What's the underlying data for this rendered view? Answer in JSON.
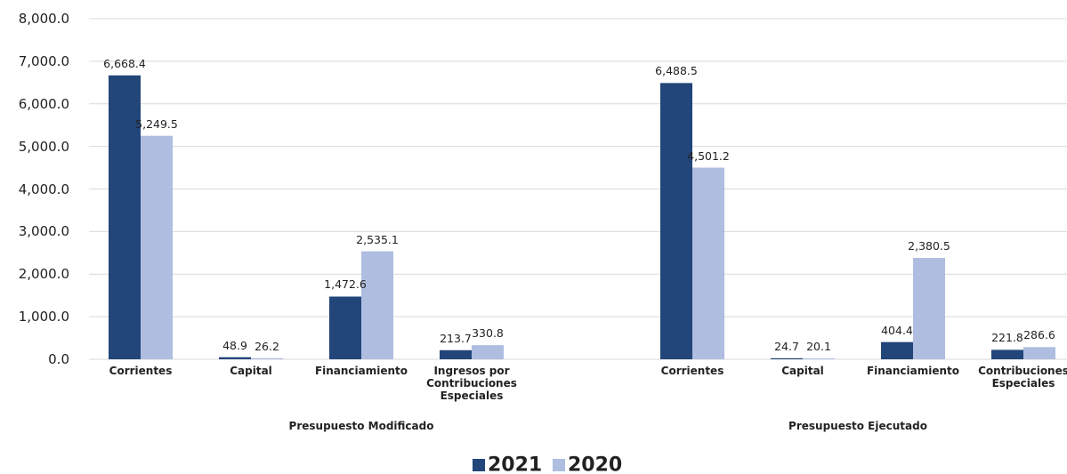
{
  "chart_data": {
    "type": "bar",
    "categories": [
      "Corrientes",
      "Capital",
      "Financiamiento",
      "Ingresos por Contribuciones Especiales",
      null,
      "Corrientes",
      "Capital",
      "Financiamiento",
      "Contribuciones Especiales"
    ],
    "groups": [
      "Presupuesto Modificado",
      "Presupuesto Ejecutado"
    ],
    "series": [
      {
        "name": "2021",
        "color": "#22457a",
        "values": [
          6668.4,
          48.9,
          1472.6,
          213.7,
          null,
          6488.5,
          24.7,
          404.4,
          221.8
        ],
        "value_labels": [
          "6,668.4",
          "48.9",
          "1,472.6",
          "213.7",
          null,
          "6,488.5",
          "24.7",
          "404.4",
          "221.8"
        ]
      },
      {
        "name": "2020",
        "color": "#aebde0",
        "values": [
          5249.5,
          26.2,
          2535.1,
          330.8,
          null,
          4501.2,
          20.1,
          2380.5,
          286.6
        ],
        "value_labels": [
          "5,249.5",
          "26.2",
          "2,535.1",
          "330.8",
          null,
          "4,501.2",
          "20.1",
          "2,380.5",
          "286.6"
        ]
      }
    ],
    "ylim": [
      0,
      8000
    ],
    "yticks": [
      {
        "value": 0,
        "label": "0.0"
      },
      {
        "value": 1000,
        "label": "1,000.0"
      },
      {
        "value": 2000,
        "label": "2,000.0"
      },
      {
        "value": 3000,
        "label": "3,000.0"
      },
      {
        "value": 4000,
        "label": "4,000.0"
      },
      {
        "value": 5000,
        "label": "5,000.0"
      },
      {
        "value": 6000,
        "label": "6,000.0"
      },
      {
        "value": 7000,
        "label": "7,000.0"
      },
      {
        "value": 8000,
        "label": "8,000.0"
      }
    ],
    "grid": true,
    "legend": "bottom"
  }
}
